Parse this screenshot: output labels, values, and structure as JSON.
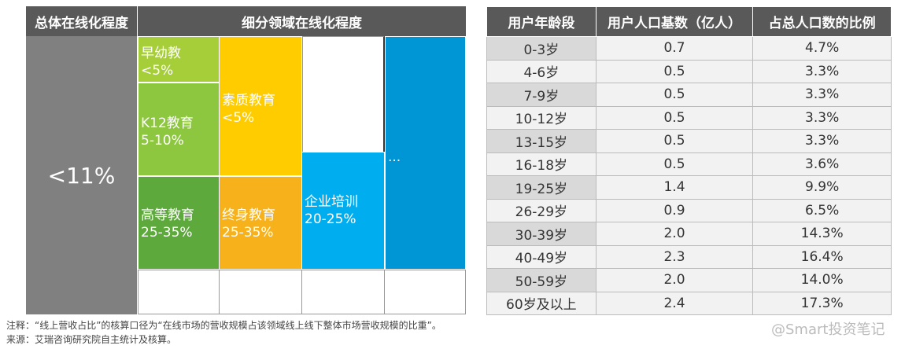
{
  "diagram": {
    "left_header": "总体在线化程度",
    "right_header": "细分领域在线化程度",
    "overall": "<11%",
    "cells": [
      {
        "label": "早幼教",
        "value": "<5%"
      },
      {
        "label": "K12教育",
        "value": "5-10%"
      },
      {
        "label": "高等教育",
        "value": "25-35%"
      },
      {
        "label": "素质教育",
        "value": "<5%"
      },
      {
        "label": "终身教育",
        "value": "25-35%"
      },
      {
        "label": "企业培训",
        "value": "20-25%"
      },
      {
        "label": "..."
      }
    ]
  },
  "table": {
    "header": [
      "用户年龄段",
      "用户人口基数（亿人）",
      "占总人口数的比例"
    ],
    "rows": [
      [
        "0-3岁",
        "0.7",
        "4.7%"
      ],
      [
        "4-6岁",
        "0.5",
        "3.3%"
      ],
      [
        "7-9岁",
        "0.5",
        "3.3%"
      ],
      [
        "10-12岁",
        "0.5",
        "3.3%"
      ],
      [
        "13-15岁",
        "0.5",
        "3.3%"
      ],
      [
        "16-18岁",
        "0.5",
        "3.6%"
      ],
      [
        "19-25岁",
        "1.4",
        "9.9%"
      ],
      [
        "26-29岁",
        "0.9",
        "6.5%"
      ],
      [
        "30-39岁",
        "2.0",
        "14.3%"
      ],
      [
        "40-49岁",
        "2.3",
        "16.4%"
      ],
      [
        "50-59岁",
        "2.0",
        "14.0%"
      ],
      [
        "60岁及以上",
        "2.4",
        "17.3%"
      ]
    ]
  },
  "notes": [
    "注释：“线上营收占比”的核算口径为“在线市场的营收规模占该领域线上线下整体市场营收规模的比重”。",
    "来源：艾瑞咨询研究院自主统计及核算。"
  ],
  "watermark": "@Smart投资笔记"
}
